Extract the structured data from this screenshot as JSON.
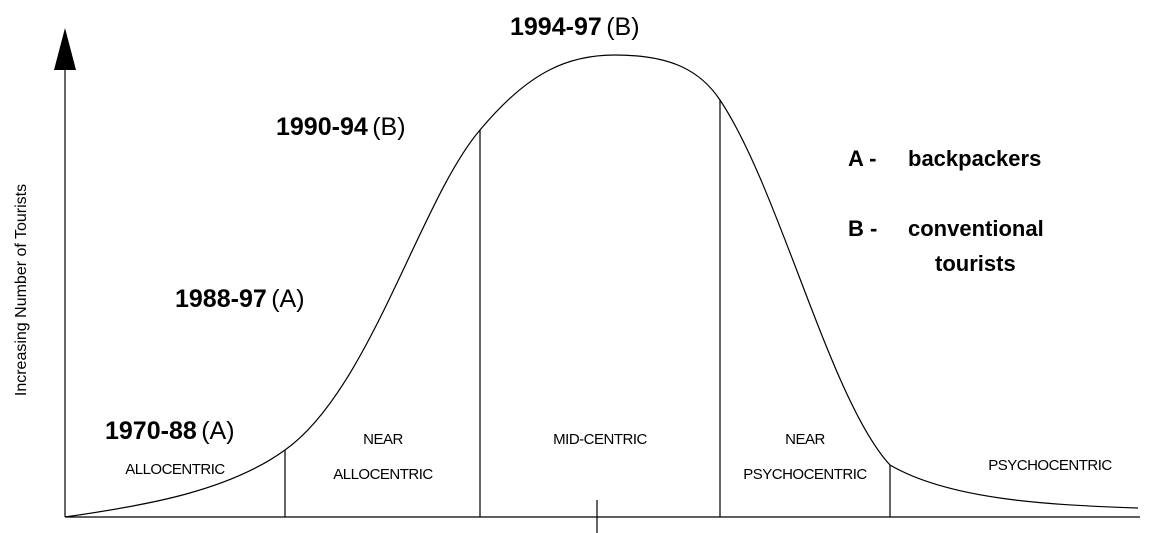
{
  "y_axis_label": "Increasing Number of Tourists",
  "periods": [
    {
      "years": "1970-88",
      "group": "(A)"
    },
    {
      "years": "1988-97",
      "group": "(A)"
    },
    {
      "years": "1990-94",
      "group": "(B)"
    },
    {
      "years": "1994-97",
      "group": "(B)"
    }
  ],
  "segments": [
    {
      "lines": [
        "ALLOCENTRIC"
      ]
    },
    {
      "lines": [
        "NEAR",
        "ALLOCENTRIC"
      ]
    },
    {
      "lines": [
        "MID-CENTRIC"
      ]
    },
    {
      "lines": [
        "NEAR",
        "PSYCHOCENTRIC"
      ]
    },
    {
      "lines": [
        "PSYCHOCENTRIC"
      ]
    }
  ],
  "legend": [
    {
      "key": "A -",
      "lines": [
        "backpackers"
      ]
    },
    {
      "key": "B -",
      "lines": [
        "conventional",
        "tourists"
      ]
    }
  ]
}
